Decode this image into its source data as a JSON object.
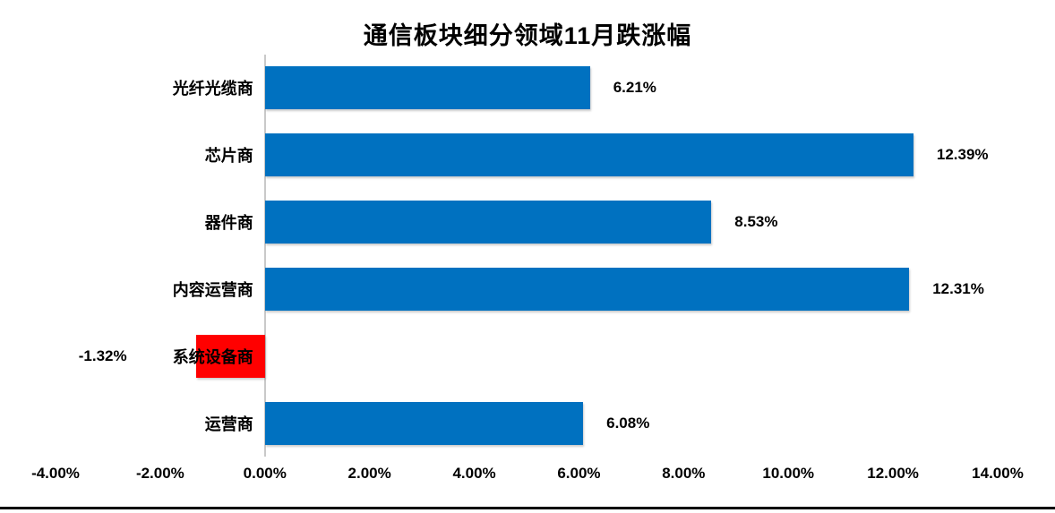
{
  "title": "通信板块细分领域11月跌涨幅",
  "chart_data": {
    "type": "bar",
    "orientation": "horizontal",
    "title": "通信板块细分领域11月跌涨幅",
    "categories": [
      "光纤光缆商",
      "芯片商",
      "器件商",
      "内容运营商",
      "系统设备商",
      "运营商"
    ],
    "values": [
      6.21,
      12.39,
      8.53,
      12.31,
      -1.32,
      6.08
    ],
    "data_labels": [
      "6.21%",
      "12.39%",
      "8.53%",
      "12.31%",
      "-1.32%",
      "6.08%"
    ],
    "xlabel": "",
    "ylabel": "",
    "xlim": [
      -4,
      14
    ],
    "x_tick_values": [
      -4,
      -2,
      0,
      2,
      4,
      6,
      8,
      10,
      12,
      14
    ],
    "x_tick_labels": [
      "-4.00%",
      "-2.00%",
      "0.00%",
      "2.00%",
      "4.00%",
      "6.00%",
      "8.00%",
      "10.00%",
      "12.00%",
      "14.00%"
    ],
    "grid": false,
    "legend": false,
    "colors": {
      "positive_bar": "#0071c0",
      "negative_bar": "#ff0000",
      "axis_line": "#c9c9c9",
      "text": "#000000",
      "background": "#ffffff"
    }
  }
}
